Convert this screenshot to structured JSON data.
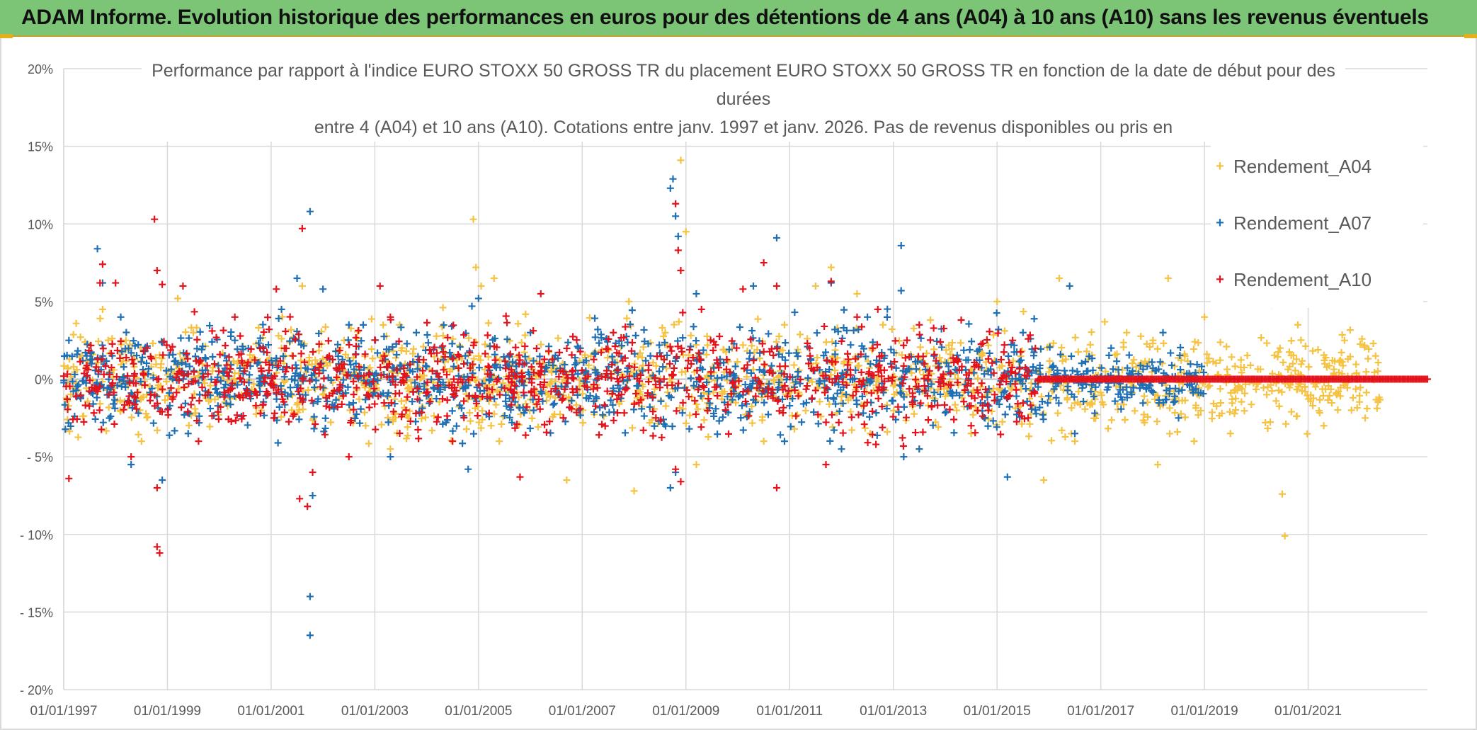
{
  "banner": {
    "title": "ADAM Informe. Evolution historique des performances en euros pour des détentions de 4 ans (A04) à 10 ans (A10) sans les revenus éventuels"
  },
  "colors": {
    "banner_bg": "#7cc576",
    "series_a04": "#f5c242",
    "series_a07": "#1f6fb5",
    "series_a10": "#e3121b",
    "grid": "#d9d9d9",
    "zero_line": "#bfbfbf",
    "axis_text": "#595959"
  },
  "chart_data": {
    "type": "scatter",
    "marker": "+",
    "title_lines": [
      "Performance par rapport à l'indice EURO STOXX 50 GROSS TR  du placement EURO STOXX 50 GROSS TR en fonction de la date de début pour des",
      "durées",
      "entre 4 (A04) et 10 ans (A10). Cotations entre janv. 1997 et janv. 2026. Pas de revenus disponibles ou pris en"
    ],
    "xlabel": "",
    "ylabel": "",
    "x_range": [
      1997.0,
      2023.3
    ],
    "x_ticks": [
      {
        "value": 1997,
        "label": "01/01/1997"
      },
      {
        "value": 1999,
        "label": "01/01/1999"
      },
      {
        "value": 2001,
        "label": "01/01/2001"
      },
      {
        "value": 2003,
        "label": "01/01/2003"
      },
      {
        "value": 2005,
        "label": "01/01/2005"
      },
      {
        "value": 2007,
        "label": "01/01/2007"
      },
      {
        "value": 2009,
        "label": "01/01/2009"
      },
      {
        "value": 2011,
        "label": "01/01/2011"
      },
      {
        "value": 2013,
        "label": "01/01/2013"
      },
      {
        "value": 2015,
        "label": "01/01/2015"
      },
      {
        "value": 2017,
        "label": "01/01/2017"
      },
      {
        "value": 2019,
        "label": "01/01/2019"
      },
      {
        "value": 2021,
        "label": "01/01/2021"
      }
    ],
    "y_range": [
      -20,
      20
    ],
    "y_ticks": [
      {
        "value": 20,
        "label": "20%"
      },
      {
        "value": 15,
        "label": "15%"
      },
      {
        "value": 10,
        "label": "10%"
      },
      {
        "value": 5,
        "label": "5%"
      },
      {
        "value": 0,
        "label": "0%"
      },
      {
        "value": -5,
        "label": "- 5%"
      },
      {
        "value": -10,
        "label": "- 10%"
      },
      {
        "value": -15,
        "label": "- 15%"
      },
      {
        "value": -20,
        "label": "- 20%"
      }
    ],
    "legend_position": "top-right",
    "series": [
      {
        "name": "Rendement_A04",
        "color": "#f5c242",
        "x_extent": [
          1997.0,
          2022.4
        ],
        "points": [
          [
            1997.75,
            4.5
          ],
          [
            1998.2,
            2.5
          ],
          [
            1998.5,
            -4.0
          ],
          [
            1999.2,
            5.2
          ],
          [
            1999.5,
            3.0
          ],
          [
            2001.2,
            2.0
          ],
          [
            2001.6,
            6.0
          ],
          [
            2003.3,
            -4.5
          ],
          [
            2004.9,
            10.3
          ],
          [
            2004.95,
            7.2
          ],
          [
            2005.05,
            6.0
          ],
          [
            2005.3,
            6.5
          ],
          [
            2005.4,
            -4.0
          ],
          [
            2006.7,
            -6.5
          ],
          [
            2007.9,
            5.0
          ],
          [
            2008.0,
            -7.2
          ],
          [
            2008.6,
            3.0
          ],
          [
            2008.9,
            14.1
          ],
          [
            2009.0,
            9.5
          ],
          [
            2009.2,
            -5.5
          ],
          [
            2010.5,
            -4.0
          ],
          [
            2010.9,
            3.5
          ],
          [
            2011.5,
            6.0
          ],
          [
            2011.8,
            7.2
          ],
          [
            2012.3,
            5.5
          ],
          [
            2012.8,
            3.5
          ],
          [
            2013.5,
            -4.5
          ],
          [
            2014.5,
            -3.5
          ],
          [
            2015.0,
            5.0
          ],
          [
            2015.9,
            -6.5
          ],
          [
            2016.2,
            6.5
          ],
          [
            2016.5,
            -4.0
          ],
          [
            2017.5,
            3.0
          ],
          [
            2018.1,
            -5.5
          ],
          [
            2018.3,
            6.5
          ],
          [
            2018.8,
            -4.0
          ],
          [
            2019.0,
            4.0
          ],
          [
            2019.5,
            -3.5
          ],
          [
            2020.3,
            4.8
          ],
          [
            2020.5,
            -7.4
          ],
          [
            2020.55,
            -10.1
          ],
          [
            2020.8,
            3.5
          ],
          [
            2021.0,
            4.8
          ],
          [
            2021.3,
            -3.0
          ],
          [
            2021.7,
            2.5
          ],
          [
            2022.1,
            -2.5
          ],
          [
            2022.3,
            1.5
          ]
        ]
      },
      {
        "name": "Rendement_A07",
        "color": "#1f6fb5",
        "x_extent": [
          1997.0,
          2019.0
        ],
        "points": [
          [
            1997.1,
            2.5
          ],
          [
            1997.65,
            8.4
          ],
          [
            1997.75,
            6.2
          ],
          [
            1998.1,
            4.0
          ],
          [
            1998.3,
            -5.5
          ],
          [
            1998.9,
            -6.5
          ],
          [
            1999.4,
            -3.5
          ],
          [
            2000.3,
            2.5
          ],
          [
            2001.2,
            4.5
          ],
          [
            2001.5,
            6.5
          ],
          [
            2001.75,
            10.8
          ],
          [
            2001.75,
            -14.0
          ],
          [
            2001.75,
            -16.5
          ],
          [
            2001.8,
            -7.5
          ],
          [
            2002.0,
            5.8
          ],
          [
            2002.5,
            3.5
          ],
          [
            2003.3,
            -5.0
          ],
          [
            2003.8,
            3.0
          ],
          [
            2004.8,
            -5.8
          ],
          [
            2005.0,
            5.2
          ],
          [
            2006.0,
            3.0
          ],
          [
            2007.3,
            3.2
          ],
          [
            2008.7,
            12.3
          ],
          [
            2008.75,
            12.9
          ],
          [
            2008.8,
            10.5
          ],
          [
            2008.85,
            9.2
          ],
          [
            2008.7,
            -7.0
          ],
          [
            2008.8,
            -6.0
          ],
          [
            2009.2,
            5.5
          ],
          [
            2010.3,
            6.0
          ],
          [
            2010.75,
            9.1
          ],
          [
            2010.9,
            -4.0
          ],
          [
            2011.8,
            6.2
          ],
          [
            2012.0,
            -4.5
          ],
          [
            2012.5,
            4.0
          ],
          [
            2013.15,
            8.6
          ],
          [
            2013.15,
            5.7
          ],
          [
            2013.2,
            -5.0
          ],
          [
            2013.5,
            -4.5
          ],
          [
            2015.2,
            -6.3
          ],
          [
            2015.5,
            3.0
          ],
          [
            2016.4,
            6.0
          ],
          [
            2016.5,
            -3.5
          ],
          [
            2017.2,
            2.0
          ],
          [
            2018.2,
            3.0
          ],
          [
            2018.5,
            -2.5
          ]
        ]
      },
      {
        "name": "Rendement_A10",
        "color": "#e3121b",
        "x_extent": [
          1997.0,
          2023.3
        ],
        "points": [
          [
            1997.1,
            -6.4
          ],
          [
            1997.7,
            6.2
          ],
          [
            1997.75,
            7.4
          ],
          [
            1998.0,
            6.2
          ],
          [
            1998.3,
            -5.0
          ],
          [
            1998.75,
            10.3
          ],
          [
            1998.8,
            7.0
          ],
          [
            1998.8,
            -10.8
          ],
          [
            1998.85,
            -11.2
          ],
          [
            1998.8,
            -7.0
          ],
          [
            1998.9,
            6.1
          ],
          [
            1999.3,
            6.0
          ],
          [
            1999.6,
            -4.0
          ],
          [
            2000.3,
            4.0
          ],
          [
            2001.1,
            5.8
          ],
          [
            2001.6,
            9.7
          ],
          [
            2001.55,
            -7.7
          ],
          [
            2001.7,
            -8.2
          ],
          [
            2001.8,
            -6.0
          ],
          [
            2002.5,
            -5.0
          ],
          [
            2003.1,
            6.0
          ],
          [
            2003.3,
            4.0
          ],
          [
            2004.5,
            -4.0
          ],
          [
            2005.8,
            -6.3
          ],
          [
            2006.2,
            5.5
          ],
          [
            2007.6,
            3.0
          ],
          [
            2008.8,
            11.3
          ],
          [
            2008.85,
            8.3
          ],
          [
            2008.9,
            7.0
          ],
          [
            2008.8,
            -5.8
          ],
          [
            2008.9,
            -6.6
          ],
          [
            2009.3,
            4.5
          ],
          [
            2010.1,
            5.8
          ],
          [
            2010.5,
            7.5
          ],
          [
            2010.75,
            6.0
          ],
          [
            2010.75,
            -7.0
          ],
          [
            2011.7,
            -5.5
          ],
          [
            2011.8,
            6.3
          ],
          [
            2012.3,
            4.0
          ],
          [
            2012.7,
            4.5
          ],
          [
            2013.5,
            3.5
          ],
          [
            2014.5,
            -3.0
          ],
          [
            2015.3,
            2.5
          ],
          [
            2015.6,
            -2.5
          ],
          [
            2015.8,
            0.0
          ]
        ]
      }
    ]
  }
}
